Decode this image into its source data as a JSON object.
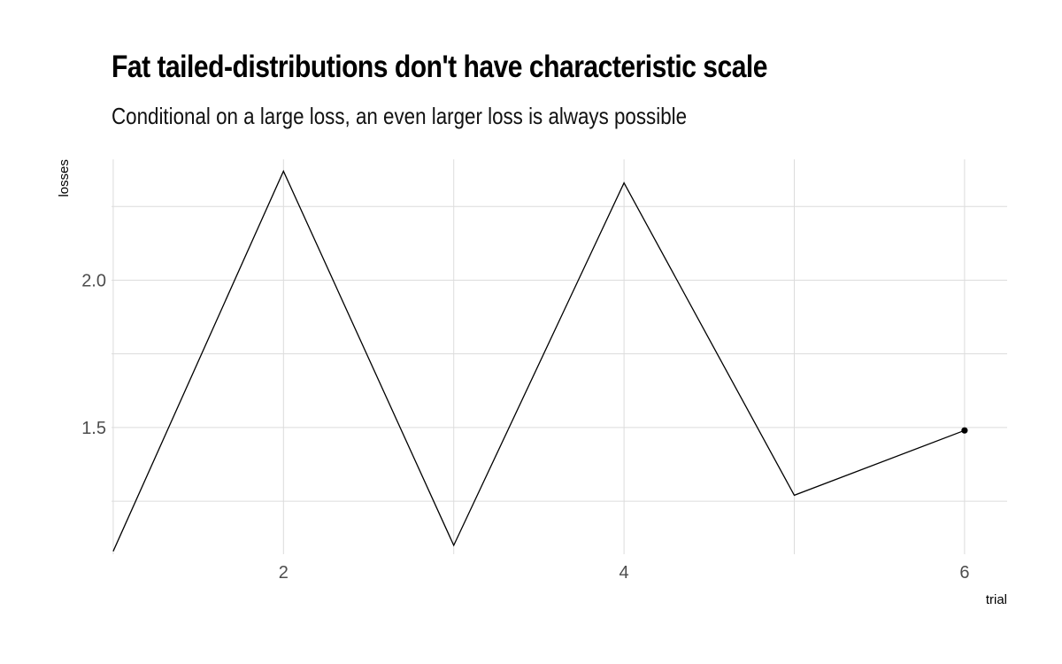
{
  "chart_data": {
    "type": "line",
    "title": "Fat tailed-distributions don't have characteristic scale",
    "subtitle": "Conditional on a large loss, an even larger loss is always possible",
    "xlabel": "trial",
    "ylabel": "losses",
    "x": [
      1,
      2,
      3,
      4,
      5,
      6
    ],
    "series": [
      {
        "values": [
          1.08,
          2.37,
          1.1,
          2.33,
          1.27,
          1.49
        ],
        "color": "#000000"
      }
    ],
    "xlim": [
      0.99,
      6.25
    ],
    "ylim": [
      1.07,
      2.41
    ],
    "x_ticks": [
      2,
      4,
      6
    ],
    "x_tick_labels": [
      "2",
      "4",
      "6"
    ],
    "x_minor_ticks": [
      1,
      3,
      5
    ],
    "y_ticks": [
      1.5,
      2.0
    ],
    "y_tick_labels": [
      "1.5",
      "2.0"
    ],
    "y_minor_ticks": [
      1.25,
      1.75,
      2.25
    ],
    "end_marker": {
      "x": 6,
      "y": 1.49
    },
    "grid": true,
    "grid_color": "#dcdcdc",
    "legend": "none"
  }
}
